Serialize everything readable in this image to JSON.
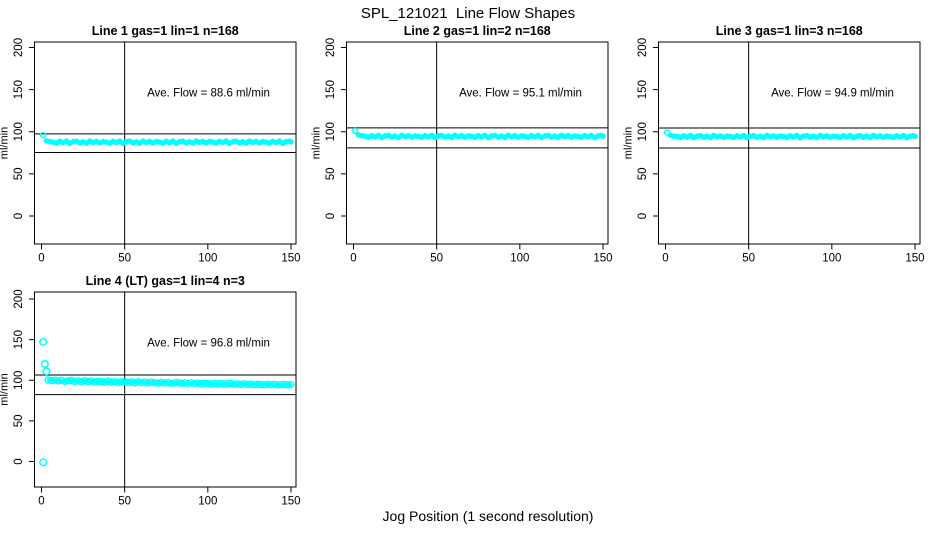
{
  "chart_data": {
    "type": "scatter",
    "title": "SPL_121021  Line Flow Shapes",
    "xlabel": "Jog Position (1 second resolution)",
    "ylabel": "ml/min",
    "x_ticks": [
      0,
      50,
      100,
      150
    ],
    "y_ticks": [
      0,
      50,
      100,
      150,
      200
    ],
    "xlim": [
      -6,
      156
    ],
    "ylim": [
      -33,
      207
    ],
    "grid": false,
    "point_color": "#00ffff",
    "axis_color": "#000000",
    "vline_x": 50,
    "panels": [
      {
        "title": "Line 1 gas=1 lin=1 n=168",
        "ave_flow_label": "Ave. Flow =  88.6  ml/min",
        "ave_flow": 88.6,
        "hlines": [
          97.5,
          75.3
        ],
        "point_radius": 2.1,
        "band_width": 4.5,
        "outlier_radius": 2.5,
        "outliers": [
          [
            1,
            96
          ]
        ],
        "points": [
          [
            3,
            89.2
          ],
          [
            5,
            88.4
          ],
          [
            7,
            87.8
          ],
          [
            9,
            86.6
          ],
          [
            11,
            88.6
          ],
          [
            13,
            87.2
          ],
          [
            15,
            88.9
          ],
          [
            17,
            86.3
          ],
          [
            19,
            88.2
          ],
          [
            21,
            88.8
          ],
          [
            23,
            86.9
          ],
          [
            25,
            88.1
          ],
          [
            27,
            86.5
          ],
          [
            29,
            89.0
          ],
          [
            31,
            87.4
          ],
          [
            33,
            88.5
          ],
          [
            35,
            86.8
          ],
          [
            37,
            88.3
          ],
          [
            39,
            87.8
          ],
          [
            41,
            86.6
          ],
          [
            43,
            88.6
          ],
          [
            45,
            87.2
          ],
          [
            47,
            88.9
          ],
          [
            49,
            86.3
          ],
          [
            51,
            88.2
          ],
          [
            53,
            88.8
          ],
          [
            55,
            86.9
          ],
          [
            57,
            88.1
          ],
          [
            59,
            86.5
          ],
          [
            61,
            89.0
          ],
          [
            63,
            87.4
          ],
          [
            65,
            88.5
          ],
          [
            67,
            86.8
          ],
          [
            69,
            88.3
          ],
          [
            71,
            87.8
          ],
          [
            73,
            86.6
          ],
          [
            75,
            88.6
          ],
          [
            77,
            87.2
          ],
          [
            79,
            88.9
          ],
          [
            81,
            86.3
          ],
          [
            83,
            88.2
          ],
          [
            85,
            88.8
          ],
          [
            87,
            86.9
          ],
          [
            89,
            88.1
          ],
          [
            91,
            86.5
          ],
          [
            93,
            89.0
          ],
          [
            95,
            87.4
          ],
          [
            97,
            88.5
          ],
          [
            99,
            86.8
          ],
          [
            101,
            88.3
          ],
          [
            103,
            87.8
          ],
          [
            105,
            86.6
          ],
          [
            107,
            88.6
          ],
          [
            109,
            87.2
          ],
          [
            111,
            88.9
          ],
          [
            113,
            86.3
          ],
          [
            115,
            88.2
          ],
          [
            117,
            88.8
          ],
          [
            119,
            86.9
          ],
          [
            121,
            88.1
          ],
          [
            123,
            86.5
          ],
          [
            125,
            89.0
          ],
          [
            127,
            87.4
          ],
          [
            129,
            88.5
          ],
          [
            131,
            86.8
          ],
          [
            133,
            88.3
          ],
          [
            135,
            87.8
          ],
          [
            137,
            86.6
          ],
          [
            139,
            88.6
          ],
          [
            141,
            87.2
          ],
          [
            143,
            88.9
          ],
          [
            145,
            86.3
          ],
          [
            147,
            88.2
          ],
          [
            149,
            88.8
          ],
          [
            150,
            87.9
          ]
        ]
      },
      {
        "title": "Line 2 gas=1 lin=2 n=168",
        "ave_flow_label": "Ave. Flow =  95.1  ml/min",
        "ave_flow": 95.1,
        "hlines": [
          104.6,
          80.8
        ],
        "point_radius": 2.1,
        "band_width": 4.5,
        "outlier_radius": 2.5,
        "outliers": [
          [
            1,
            101
          ]
        ],
        "points": [
          [
            3,
            96.2
          ],
          [
            5,
            95.3
          ],
          [
            7,
            94.6
          ],
          [
            9,
            93.4
          ],
          [
            11,
            95.4
          ],
          [
            13,
            94.0
          ],
          [
            15,
            95.7
          ],
          [
            17,
            93.1
          ],
          [
            19,
            95.0
          ],
          [
            21,
            95.6
          ],
          [
            23,
            93.7
          ],
          [
            25,
            94.9
          ],
          [
            27,
            93.3
          ],
          [
            29,
            95.8
          ],
          [
            31,
            94.2
          ],
          [
            33,
            95.3
          ],
          [
            35,
            93.6
          ],
          [
            37,
            95.1
          ],
          [
            39,
            94.6
          ],
          [
            41,
            93.4
          ],
          [
            43,
            95.4
          ],
          [
            45,
            94.0
          ],
          [
            47,
            95.7
          ],
          [
            49,
            93.1
          ],
          [
            51,
            95.0
          ],
          [
            53,
            95.6
          ],
          [
            55,
            93.7
          ],
          [
            57,
            94.9
          ],
          [
            59,
            93.3
          ],
          [
            61,
            95.8
          ],
          [
            63,
            94.2
          ],
          [
            65,
            95.3
          ],
          [
            67,
            93.6
          ],
          [
            69,
            95.1
          ],
          [
            71,
            94.6
          ],
          [
            73,
            93.4
          ],
          [
            75,
            95.4
          ],
          [
            77,
            94.0
          ],
          [
            79,
            95.7
          ],
          [
            81,
            93.1
          ],
          [
            83,
            95.0
          ],
          [
            85,
            95.6
          ],
          [
            87,
            93.7
          ],
          [
            89,
            94.9
          ],
          [
            91,
            93.3
          ],
          [
            93,
            95.8
          ],
          [
            95,
            94.2
          ],
          [
            97,
            95.3
          ],
          [
            99,
            93.6
          ],
          [
            101,
            95.1
          ],
          [
            103,
            94.6
          ],
          [
            105,
            93.4
          ],
          [
            107,
            95.4
          ],
          [
            109,
            94.0
          ],
          [
            111,
            95.7
          ],
          [
            113,
            93.1
          ],
          [
            115,
            95.0
          ],
          [
            117,
            95.6
          ],
          [
            119,
            93.7
          ],
          [
            121,
            94.9
          ],
          [
            123,
            93.3
          ],
          [
            125,
            95.8
          ],
          [
            127,
            94.2
          ],
          [
            129,
            95.3
          ],
          [
            131,
            93.6
          ],
          [
            133,
            95.1
          ],
          [
            135,
            94.6
          ],
          [
            137,
            93.4
          ],
          [
            139,
            95.4
          ],
          [
            141,
            94.0
          ],
          [
            143,
            95.7
          ],
          [
            145,
            93.1
          ],
          [
            147,
            95.0
          ],
          [
            149,
            95.6
          ],
          [
            150,
            94.7
          ]
        ]
      },
      {
        "title": "Line 3 gas=1 lin=3 n=168",
        "ave_flow_label": "Ave. Flow =  94.9  ml/min",
        "ave_flow": 94.9,
        "hlines": [
          104.4,
          80.7
        ],
        "point_radius": 2.1,
        "band_width": 4.5,
        "outlier_radius": 2.5,
        "outliers": [
          [
            1,
            99
          ]
        ],
        "points": [
          [
            3,
            95.6
          ],
          [
            5,
            94.9
          ],
          [
            7,
            94.4
          ],
          [
            9,
            93.2
          ],
          [
            11,
            95.2
          ],
          [
            13,
            93.8
          ],
          [
            15,
            95.5
          ],
          [
            17,
            92.9
          ],
          [
            19,
            94.8
          ],
          [
            21,
            95.4
          ],
          [
            23,
            93.5
          ],
          [
            25,
            94.7
          ],
          [
            27,
            93.1
          ],
          [
            29,
            95.6
          ],
          [
            31,
            94.0
          ],
          [
            33,
            95.1
          ],
          [
            35,
            93.4
          ],
          [
            37,
            94.9
          ],
          [
            39,
            94.4
          ],
          [
            41,
            93.2
          ],
          [
            43,
            95.2
          ],
          [
            45,
            93.8
          ],
          [
            47,
            95.5
          ],
          [
            49,
            92.9
          ],
          [
            51,
            94.8
          ],
          [
            53,
            95.4
          ],
          [
            55,
            93.5
          ],
          [
            57,
            94.7
          ],
          [
            59,
            93.1
          ],
          [
            61,
            95.6
          ],
          [
            63,
            94.0
          ],
          [
            65,
            95.1
          ],
          [
            67,
            93.4
          ],
          [
            69,
            94.9
          ],
          [
            71,
            94.4
          ],
          [
            73,
            93.2
          ],
          [
            75,
            95.2
          ],
          [
            77,
            93.8
          ],
          [
            79,
            95.5
          ],
          [
            81,
            92.9
          ],
          [
            83,
            94.8
          ],
          [
            85,
            95.4
          ],
          [
            87,
            93.5
          ],
          [
            89,
            94.7
          ],
          [
            91,
            93.1
          ],
          [
            93,
            95.6
          ],
          [
            95,
            94.0
          ],
          [
            97,
            95.1
          ],
          [
            99,
            93.4
          ],
          [
            101,
            94.9
          ],
          [
            103,
            94.4
          ],
          [
            105,
            93.2
          ],
          [
            107,
            95.2
          ],
          [
            109,
            93.8
          ],
          [
            111,
            95.5
          ],
          [
            113,
            92.9
          ],
          [
            115,
            94.8
          ],
          [
            117,
            95.4
          ],
          [
            119,
            93.5
          ],
          [
            121,
            94.7
          ],
          [
            123,
            93.1
          ],
          [
            125,
            95.6
          ],
          [
            127,
            94.0
          ],
          [
            129,
            95.1
          ],
          [
            131,
            93.4
          ],
          [
            133,
            94.9
          ],
          [
            135,
            94.4
          ],
          [
            137,
            93.2
          ],
          [
            139,
            95.2
          ],
          [
            141,
            93.8
          ],
          [
            143,
            95.5
          ],
          [
            145,
            92.9
          ],
          [
            147,
            94.8
          ],
          [
            149,
            95.4
          ],
          [
            150,
            94.5
          ]
        ]
      },
      {
        "title": "Line 4 (LT) gas=1 lin=4 n=3",
        "ave_flow_label": "Ave. Flow =  96.8  ml/min",
        "ave_flow": 96.8,
        "hlines": [
          106.5,
          82.3
        ],
        "point_radius": 3.0,
        "band_width": 3.2,
        "outlier_radius": 3.3,
        "outliers": [
          [
            1,
            147
          ],
          [
            2,
            120
          ],
          [
            3,
            111
          ],
          [
            1,
            -1
          ]
        ],
        "points": [
          [
            4,
            100.3
          ],
          [
            6,
            99.6
          ],
          [
            8,
            100.1
          ],
          [
            10,
            99.2
          ],
          [
            12,
            99.9
          ],
          [
            14,
            98.7
          ],
          [
            16,
            99.5
          ],
          [
            18,
            99.9
          ],
          [
            20,
            98.6
          ],
          [
            22,
            99.3
          ],
          [
            24,
            98.2
          ],
          [
            26,
            99.6
          ],
          [
            28,
            98.5
          ],
          [
            30,
            99.1
          ],
          [
            32,
            97.9
          ],
          [
            34,
            98.9
          ],
          [
            36,
            98.3
          ],
          [
            38,
            97.6
          ],
          [
            40,
            98.8
          ],
          [
            42,
            97.8
          ],
          [
            44,
            98.6
          ],
          [
            46,
            97.2
          ],
          [
            48,
            98.2
          ],
          [
            50,
            98.5
          ],
          [
            52,
            97.3
          ],
          [
            54,
            98.0
          ],
          [
            56,
            96.9
          ],
          [
            58,
            98.3
          ],
          [
            60,
            97.2
          ],
          [
            62,
            97.9
          ],
          [
            64,
            96.8
          ],
          [
            66,
            97.6
          ],
          [
            68,
            97.1
          ],
          [
            70,
            96.4
          ],
          [
            72,
            97.4
          ],
          [
            74,
            96.6
          ],
          [
            76,
            97.3
          ],
          [
            78,
            96.1
          ],
          [
            80,
            96.9
          ],
          [
            82,
            97.2
          ],
          [
            84,
            96.2
          ],
          [
            86,
            96.8
          ],
          [
            88,
            95.9
          ],
          [
            90,
            97.0
          ],
          [
            92,
            96.1
          ],
          [
            94,
            96.6
          ],
          [
            96,
            95.7
          ],
          [
            98,
            96.4
          ],
          [
            100,
            96.0
          ],
          [
            102,
            95.4
          ],
          [
            104,
            96.2
          ],
          [
            106,
            95.5
          ],
          [
            108,
            96.1
          ],
          [
            110,
            95.1
          ],
          [
            112,
            95.8
          ],
          [
            114,
            96.0
          ],
          [
            116,
            95.0
          ],
          [
            118,
            95.6
          ],
          [
            120,
            94.8
          ],
          [
            122,
            95.8
          ],
          [
            124,
            94.9
          ],
          [
            126,
            95.4
          ],
          [
            128,
            94.6
          ],
          [
            130,
            95.2
          ],
          [
            132,
            94.9
          ],
          [
            134,
            94.4
          ],
          [
            136,
            95.1
          ],
          [
            138,
            94.5
          ],
          [
            140,
            95.0
          ],
          [
            142,
            94.2
          ],
          [
            144,
            94.8
          ],
          [
            146,
            95.0
          ],
          [
            148,
            94.3
          ],
          [
            150,
            94.7
          ]
        ]
      }
    ]
  }
}
